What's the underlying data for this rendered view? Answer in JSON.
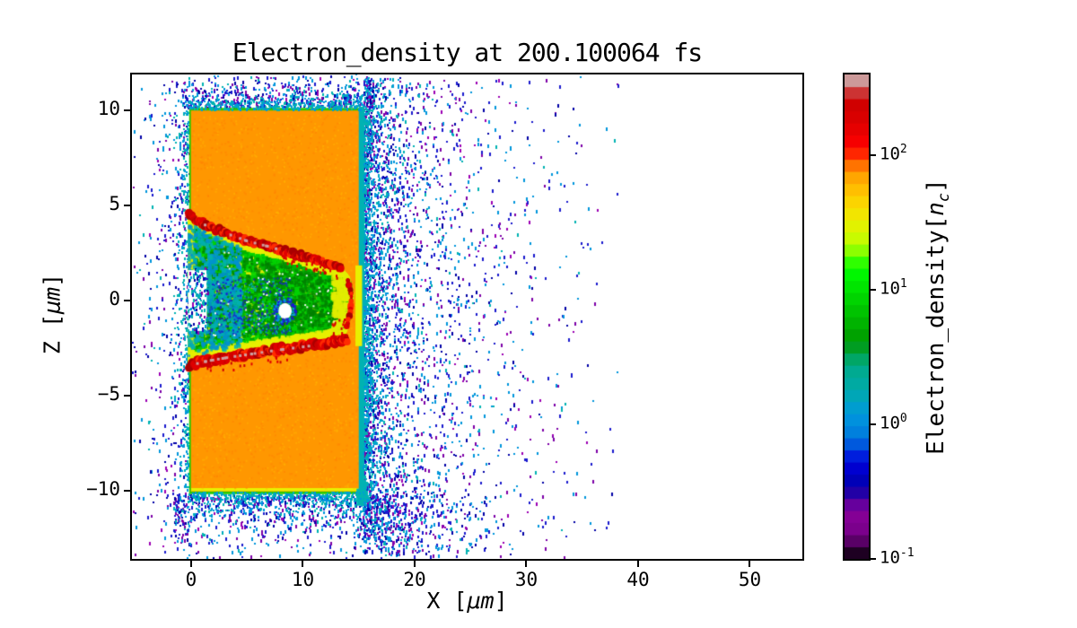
{
  "labels": {
    "x_prefix": "X [",
    "x_unit": "μm",
    "x_suffix": "]",
    "y_prefix": "Z [",
    "y_unit": "μm",
    "y_suffix": "]",
    "cb_prefix": "Electron_density[",
    "cb_n": "n",
    "cb_sub": "c",
    "cb_suffix": "]"
  },
  "chart_data": {
    "type": "heatmap",
    "title": "Electron_density at 200.100064 fs",
    "xlabel": "X [μm]",
    "ylabel": "Z [μm]",
    "time_fs": 200.100064,
    "xlim": [
      -5.3,
      54.7
    ],
    "ylim": [
      -13.6,
      11.9
    ],
    "x_ticks": [
      0,
      10,
      20,
      30,
      40,
      50
    ],
    "y_ticks": [
      10,
      5,
      0,
      -5,
      -10
    ],
    "grid": false,
    "colorbar": {
      "label": "Electron_density[nc]",
      "scale": "log",
      "tick_exponents": [
        2,
        1,
        0,
        -1
      ],
      "tick_values": [
        100,
        10,
        1,
        0.1
      ],
      "vmin": 0.1,
      "vmax": 400,
      "colormap": "nipy_spectral",
      "n_bands": 40,
      "colormap_stops": [
        [
          0.0,
          "#000000"
        ],
        [
          0.05,
          "#770088"
        ],
        [
          0.1,
          "#880099"
        ],
        [
          0.15,
          "#0000aa"
        ],
        [
          0.2,
          "#0000dd"
        ],
        [
          0.25,
          "#0077dd"
        ],
        [
          0.3,
          "#0099dd"
        ],
        [
          0.35,
          "#00aaaa"
        ],
        [
          0.4,
          "#00aa88"
        ],
        [
          0.45,
          "#009900"
        ],
        [
          0.5,
          "#00bb00"
        ],
        [
          0.55,
          "#00dd00"
        ],
        [
          0.6,
          "#00ff00"
        ],
        [
          0.65,
          "#bbff00"
        ],
        [
          0.7,
          "#eeee00"
        ],
        [
          0.75,
          "#ffcc00"
        ],
        [
          0.8,
          "#ff9900"
        ],
        [
          0.85,
          "#ff0000"
        ],
        [
          0.9,
          "#dd0000"
        ],
        [
          0.95,
          "#cc0000"
        ],
        [
          1.0,
          "#cccccc"
        ]
      ]
    },
    "features": {
      "slab": {
        "x0": 0.0,
        "x1": 15.0,
        "z0": -10.05,
        "z1": 10.0,
        "fill": "#ff9700",
        "border": "#2ec800",
        "bottom_line": "#e8f000",
        "density_nc": 100
      },
      "right_strip": {
        "x0": 15.0,
        "x1": 15.5,
        "color": "#00b2b2"
      },
      "right_yellow_band": {
        "x0": 14.7,
        "x1": 15.3,
        "z0": -2.4,
        "z1": 1.85,
        "color": "#e8f000"
      },
      "channel": {
        "upper": [
          [
            -0.3,
            4.7
          ],
          [
            1,
            4.2
          ],
          [
            3,
            3.7
          ],
          [
            5,
            3.25
          ],
          [
            7,
            2.95
          ],
          [
            9,
            2.6
          ],
          [
            11,
            2.25
          ],
          [
            12.7,
            1.93
          ],
          [
            13.4,
            1.82
          ]
        ],
        "apex": [
          [
            13.4,
            1.82
          ],
          [
            14.2,
            1.25
          ],
          [
            14.6,
            0.35
          ],
          [
            14.45,
            -0.65
          ],
          [
            14.0,
            -1.55
          ],
          [
            13.6,
            -2.05
          ]
        ],
        "lower": [
          [
            13.6,
            -2.05
          ],
          [
            12,
            -2.2
          ],
          [
            10,
            -2.38
          ],
          [
            8,
            -2.52
          ],
          [
            6,
            -2.7
          ],
          [
            4,
            -2.88
          ],
          [
            2,
            -3.1
          ],
          [
            0,
            -3.35
          ],
          [
            -0.3,
            -3.55
          ]
        ],
        "base_fill": "#dcec00",
        "greens": [
          "#00b400",
          "#00d400",
          "#009400"
        ],
        "teals": [
          "#00b0b0",
          "#0090d0"
        ]
      },
      "ridge_upper": [
        [
          -0.25,
          4.5
        ],
        [
          1,
          4.05
        ],
        [
          3,
          3.58
        ],
        [
          5,
          3.15
        ],
        [
          7,
          2.85
        ],
        [
          9,
          2.5
        ],
        [
          11,
          2.15
        ],
        [
          12.7,
          1.9
        ],
        [
          13.5,
          1.75
        ]
      ],
      "ridge_lower": [
        [
          -0.25,
          -3.4
        ],
        [
          1.5,
          -3.15
        ],
        [
          3.5,
          -2.95
        ],
        [
          5.5,
          -2.78
        ],
        [
          7.5,
          -2.6
        ],
        [
          9.5,
          -2.45
        ],
        [
          11.5,
          -2.3
        ],
        [
          13.3,
          -2.12
        ],
        [
          14.0,
          -2.0
        ]
      ],
      "ridge_apex": [
        [
          14.0,
          1.1
        ],
        [
          14.35,
          0.3
        ],
        [
          14.25,
          -0.6
        ],
        [
          13.85,
          -1.4
        ]
      ],
      "ridge_colors": [
        "#e00000",
        "#cc0000",
        "#ff2a00",
        "#aa0000"
      ],
      "ridge_gray_speck": "#cf9f9f",
      "hole": {
        "x": 8.4,
        "z": -0.55,
        "rx": 0.6,
        "rz": 0.42
      },
      "scatter": {
        "colors": [
          "#1a1ace",
          "#0096dc",
          "#0000a6",
          "#7d00a8",
          "#9c00b4",
          "#00b2b2"
        ],
        "weights": [
          0.28,
          0.3,
          0.14,
          0.16,
          0.06,
          0.06
        ],
        "max_x_extent": 38.5,
        "regions": {
          "right_cloud": {
            "n": 2400,
            "decay": 4.8
          },
          "right_edge": {
            "n": 1000,
            "decay": 0.9
          },
          "left_cloud": {
            "n": 520,
            "decay": 1.9
          },
          "top_band": {
            "n": 600,
            "decay": 0.85
          },
          "bottom_band": {
            "n": 850,
            "decay": 1.15
          },
          "bottom_wide": {
            "n": 250,
            "decay": 4.0
          },
          "ambient": {
            "n": 260
          }
        }
      }
    }
  }
}
